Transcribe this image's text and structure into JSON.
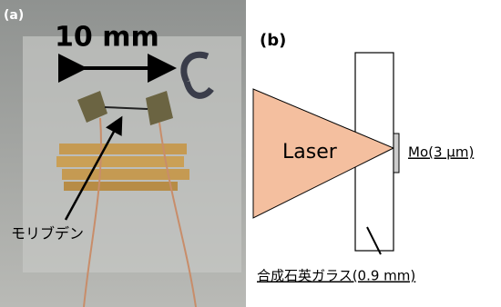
{
  "panel_a": {
    "label": "(a)",
    "scale_label": "10 mm",
    "material_label": "モリブデン"
  },
  "panel_b": {
    "label": "(b)",
    "laser_label": "Laser",
    "target_label": "Mo(3 μm)",
    "substrate_label": "合成石英ガラス(0.9 mm)"
  }
}
